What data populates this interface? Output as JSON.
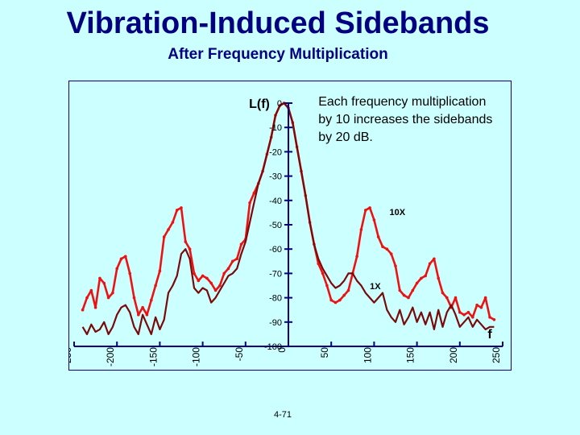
{
  "header": {
    "title": "Vibration-Induced Sidebands",
    "subtitle": "After Frequency Multiplication"
  },
  "footer": {
    "page_number": "4-71"
  },
  "chart_data": {
    "type": "line",
    "ylabel": "L(f)",
    "xlabel": "f",
    "xlim": [
      -250,
      250
    ],
    "ylim": [
      -100,
      0
    ],
    "x_ticks": [
      -250,
      -200,
      -150,
      -100,
      -50,
      0,
      50,
      100,
      150,
      200,
      250
    ],
    "x_tick_labels": [
      "-250",
      "-200",
      "-150",
      "-100",
      "-50",
      "0",
      "50",
      "100",
      "150",
      "200",
      "250"
    ],
    "y_ticks": [
      0,
      -10,
      -20,
      -30,
      -40,
      -50,
      -60,
      -70,
      -80,
      -90,
      -100
    ],
    "y_tick_labels": [
      "0",
      "-10",
      "-20",
      "-30",
      "-40",
      "-50",
      "-60",
      "-70",
      "-80",
      "-90",
      "-100"
    ],
    "annotations": {
      "note": "Each frequency multiplication by 10 increases the sidebands by 20 dB.",
      "label_10x": "10X",
      "label_1x": "1X"
    },
    "colors": {
      "series_10x": "#ee1111",
      "series_1x": "#7a0a0a",
      "axis": "#000080",
      "background": "#ccffff",
      "title": "#000080"
    },
    "series": [
      {
        "name": "10X",
        "x": [
          -240,
          -235,
          -230,
          -225,
          -220,
          -215,
          -210,
          -205,
          -200,
          -195,
          -190,
          -185,
          -180,
          -175,
          -170,
          -165,
          -160,
          -155,
          -150,
          -145,
          -140,
          -135,
          -130,
          -125,
          -120,
          -115,
          -110,
          -105,
          -100,
          -95,
          -90,
          -85,
          -80,
          -75,
          -70,
          -65,
          -60,
          -55,
          -50,
          -45,
          -40,
          -35,
          -30,
          -25,
          -20,
          -15,
          -10,
          -5,
          0,
          5,
          10,
          15,
          20,
          25,
          30,
          35,
          40,
          45,
          50,
          55,
          60,
          65,
          70,
          75,
          80,
          85,
          90,
          95,
          100,
          105,
          110,
          115,
          120,
          125,
          130,
          135,
          140,
          145,
          150,
          155,
          160,
          165,
          170,
          175,
          180,
          185,
          190,
          195,
          200,
          205,
          210,
          215,
          220,
          225,
          230,
          235,
          240
        ],
        "values": [
          -85,
          -80,
          -77,
          -84,
          -72,
          -74,
          -80,
          -78,
          -68,
          -64,
          -63,
          -70,
          -80,
          -87,
          -84,
          -87,
          -81,
          -75,
          -69,
          -55,
          -52,
          -49,
          -44,
          -43,
          -57,
          -60,
          -70,
          -73,
          -71,
          -72,
          -74,
          -77,
          -75,
          -70,
          -68,
          -65,
          -64,
          -58,
          -56,
          -41,
          -37,
          -33,
          -28,
          -21,
          -14,
          -5,
          -1,
          0,
          -2,
          -8,
          -18,
          -28,
          -38,
          -49,
          -58,
          -66,
          -70,
          -75,
          -81,
          -82,
          -81,
          -79,
          -77,
          -70,
          -63,
          -52,
          -44,
          -43,
          -48,
          -55,
          -59,
          -60,
          -62,
          -67,
          -77,
          -79,
          -80,
          -77,
          -74,
          -72,
          -71,
          -66,
          -64,
          -72,
          -78,
          -80,
          -84,
          -80,
          -86,
          -87,
          -86,
          -88,
          -83,
          -84,
          -80,
          -88,
          -89
        ]
      },
      {
        "name": "1X",
        "x": [
          -240,
          -235,
          -230,
          -225,
          -220,
          -215,
          -210,
          -205,
          -200,
          -195,
          -190,
          -185,
          -180,
          -175,
          -170,
          -165,
          -160,
          -155,
          -150,
          -145,
          -140,
          -135,
          -130,
          -125,
          -120,
          -115,
          -110,
          -105,
          -100,
          -95,
          -90,
          -85,
          -80,
          -75,
          -70,
          -65,
          -60,
          -55,
          -50,
          -45,
          -40,
          -35,
          -30,
          -25,
          -20,
          -15,
          -10,
          -5,
          0,
          5,
          10,
          15,
          20,
          25,
          30,
          35,
          40,
          45,
          50,
          55,
          60,
          65,
          70,
          75,
          80,
          85,
          90,
          95,
          100,
          105,
          110,
          115,
          120,
          125,
          130,
          135,
          140,
          145,
          150,
          155,
          160,
          165,
          170,
          175,
          180,
          185,
          190,
          195,
          200,
          205,
          210,
          215,
          220,
          225,
          230,
          235,
          240
        ],
        "values": [
          -92,
          -95,
          -91,
          -94,
          -93,
          -90,
          -95,
          -92,
          -87,
          -84,
          -83,
          -86,
          -92,
          -95,
          -87,
          -91,
          -95,
          -88,
          -93,
          -89,
          -78,
          -75,
          -71,
          -62,
          -60,
          -64,
          -76,
          -78,
          -76,
          -77,
          -82,
          -80,
          -77,
          -74,
          -71,
          -70,
          -68,
          -62,
          -57,
          -49,
          -41,
          -33,
          -28,
          -21,
          -14,
          -5,
          -1,
          0,
          -2,
          -8,
          -18,
          -28,
          -38,
          -49,
          -58,
          -64,
          -68,
          -71,
          -74,
          -76,
          -75,
          -73,
          -70,
          -70,
          -73,
          -75,
          -78,
          -80,
          -82,
          -80,
          -78,
          -85,
          -88,
          -90,
          -85,
          -91,
          -88,
          -84,
          -90,
          -86,
          -91,
          -86,
          -93,
          -85,
          -92,
          -86,
          -83,
          -87,
          -92,
          -90,
          -88,
          -92,
          -89,
          -91,
          -93,
          -92,
          -92
        ]
      }
    ]
  }
}
